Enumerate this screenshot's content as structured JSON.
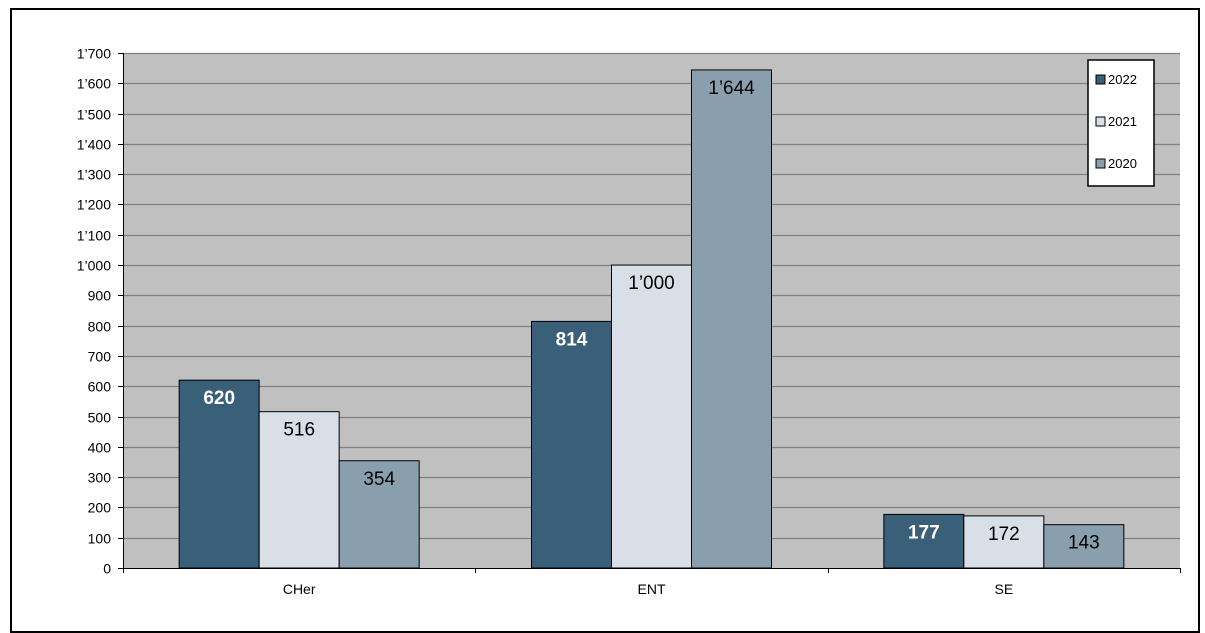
{
  "chart_data": {
    "type": "bar",
    "categories": [
      "CHer",
      "ENT",
      "SE"
    ],
    "series": [
      {
        "name": "2022",
        "values": [
          620,
          814,
          177
        ],
        "color": "#3a5f78",
        "label_color": "#ffffff",
        "label_bold": true
      },
      {
        "name": "2021",
        "values": [
          516,
          1000,
          172
        ],
        "color": "#d8dfe6",
        "label_color": "#000000",
        "label_bold": false
      },
      {
        "name": "2020",
        "values": [
          354,
          1644,
          143
        ],
        "color": "#8a9fae",
        "label_color": "#000000",
        "label_bold": false
      }
    ],
    "value_labels": [
      [
        "620",
        "814",
        "177"
      ],
      [
        "516",
        "1’000",
        "172"
      ],
      [
        "354",
        "1’644",
        "143"
      ]
    ],
    "y_ticks": [
      0,
      100,
      200,
      300,
      400,
      500,
      600,
      700,
      800,
      900,
      1000,
      1100,
      1200,
      1300,
      1400,
      1500,
      1600,
      1700
    ],
    "y_tick_labels": [
      "0",
      "100",
      "200",
      "300",
      "400",
      "500",
      "600",
      "700",
      "800",
      "900",
      "1’000",
      "1’100",
      "1’200",
      "1’300",
      "1’400",
      "1’500",
      "1’600",
      "1’700"
    ],
    "ylim": [
      0,
      1700
    ],
    "title": "",
    "xlabel": "",
    "ylabel": "",
    "grid": true,
    "legend_position": "top-right",
    "plot_background": "#c0c0c0",
    "gridline_color": "#808080"
  }
}
